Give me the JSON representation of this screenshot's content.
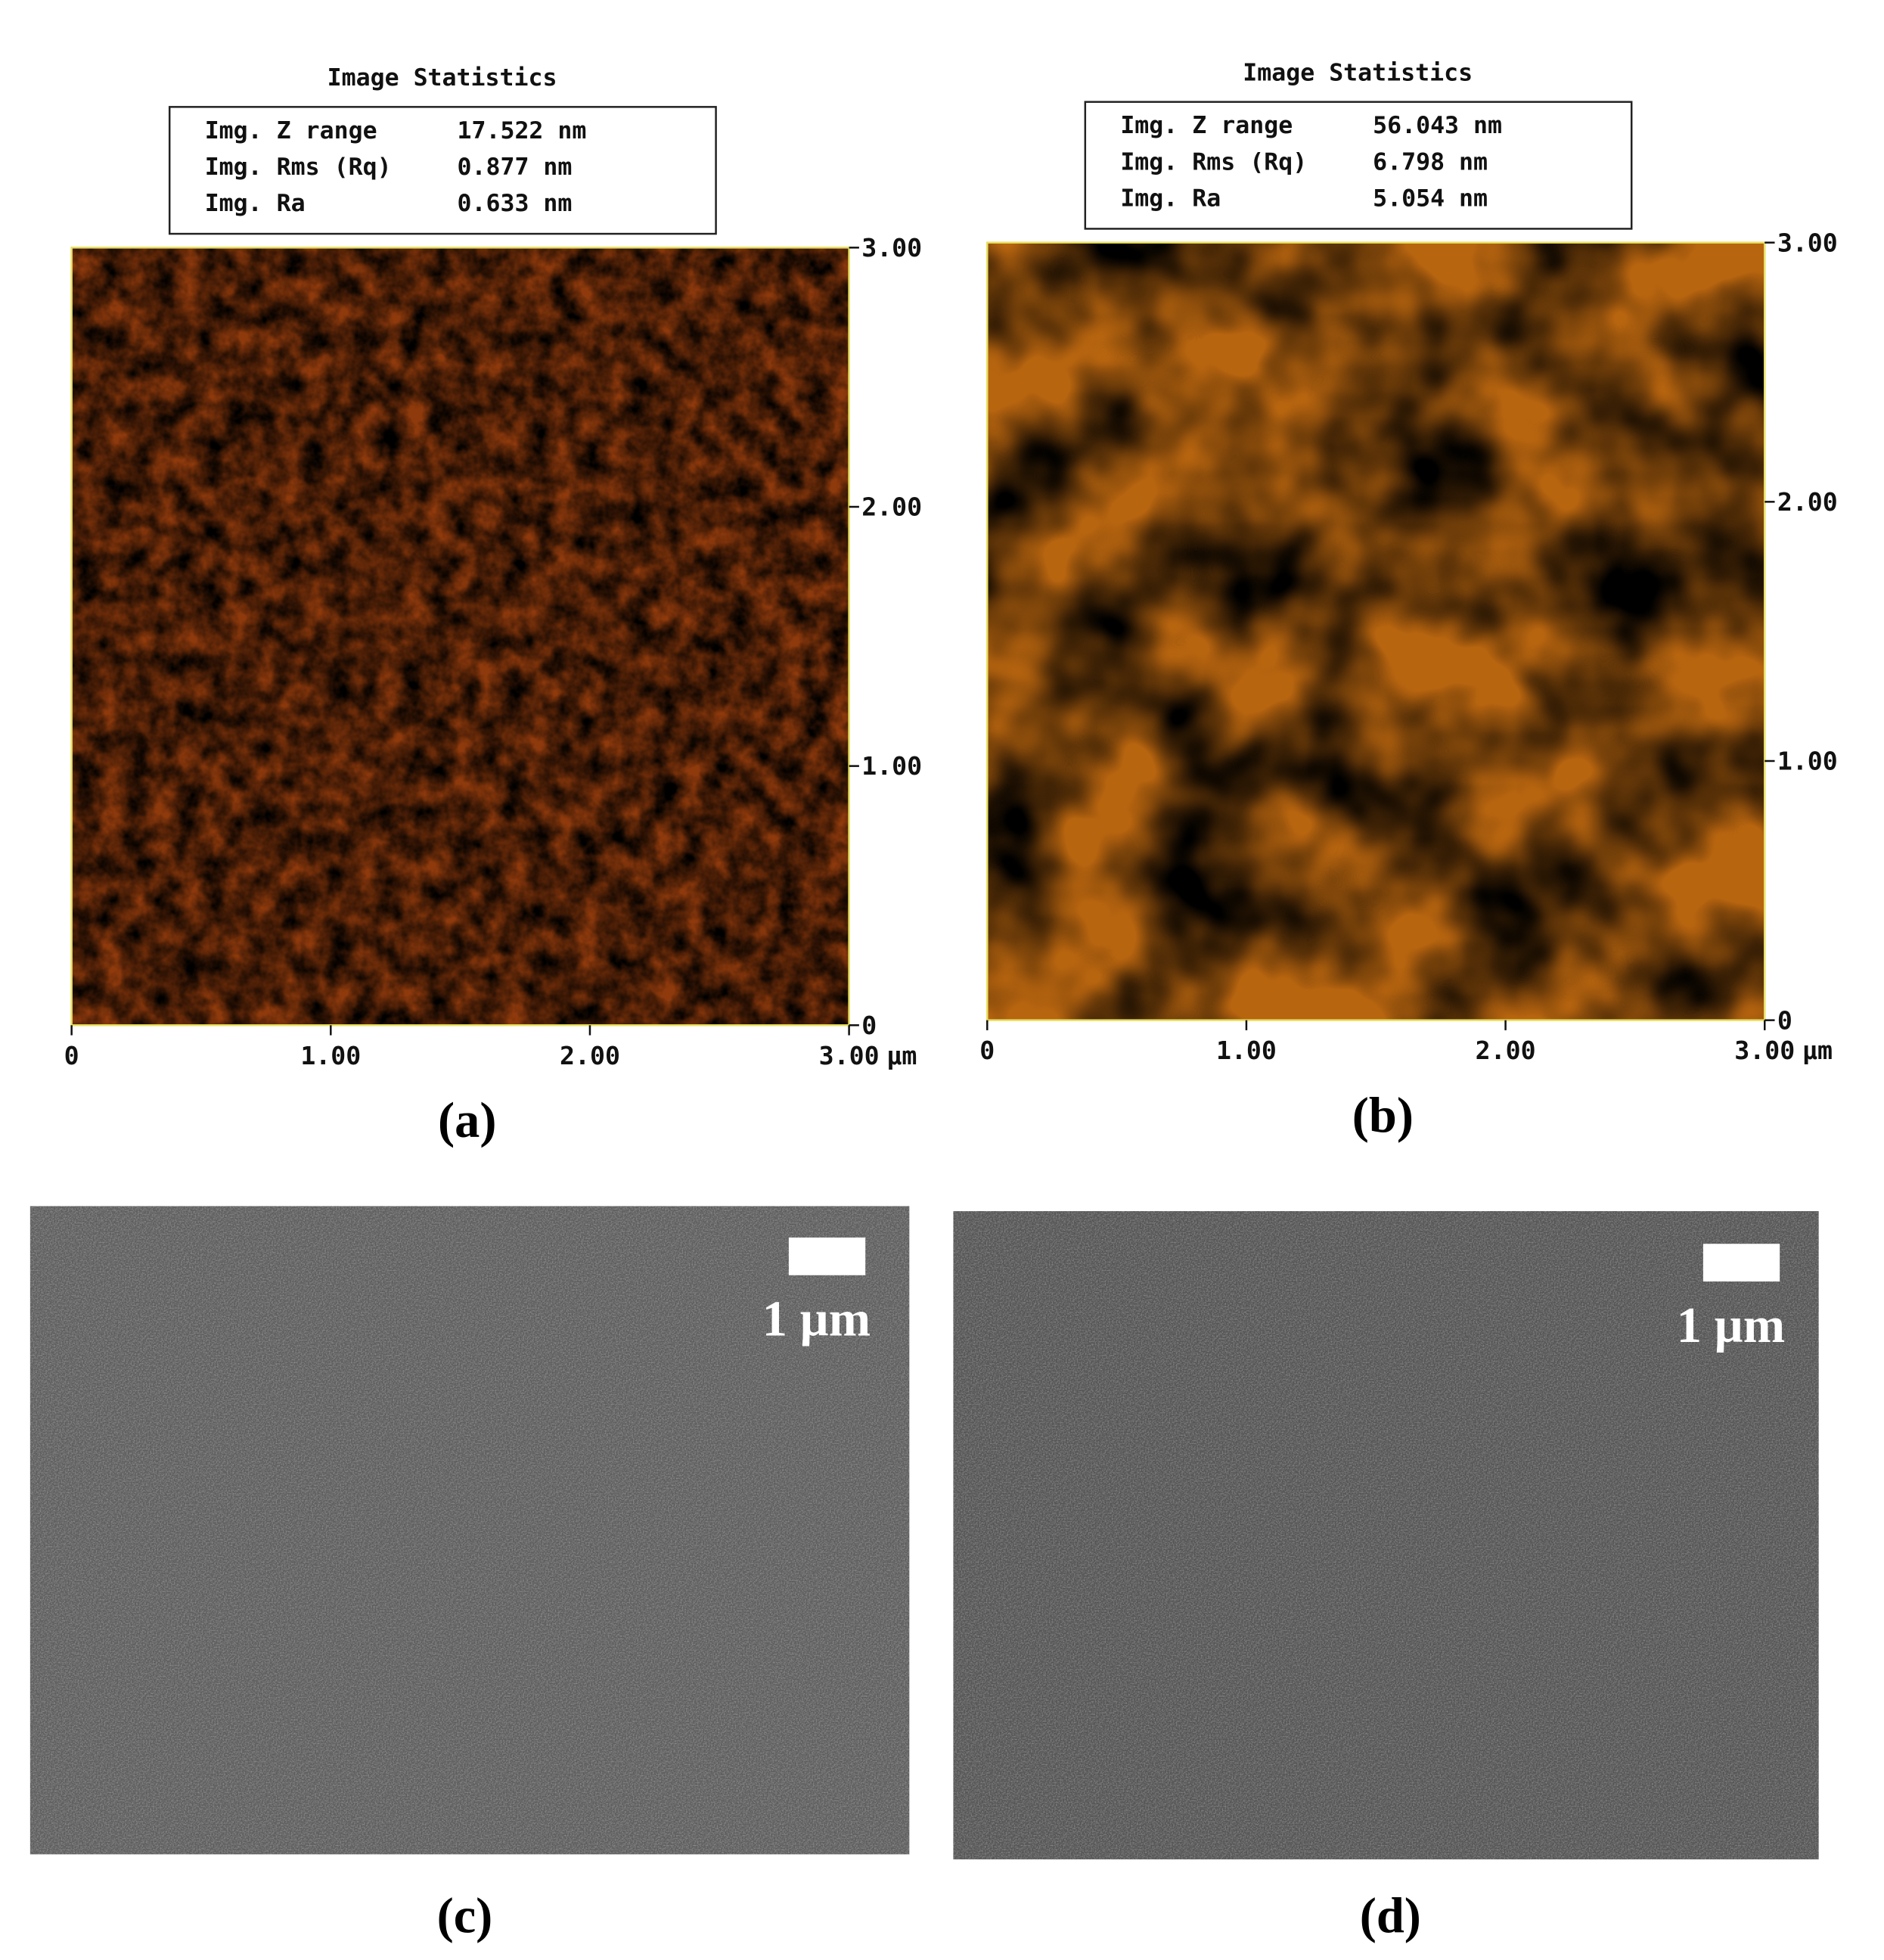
{
  "panels": [
    {
      "label": "(a)",
      "stats_title": "Image Statistics",
      "stats": [
        {
          "name": "Img. Z range",
          "value": "17.522 nm"
        },
        {
          "name": "Img. Rms (Rq)",
          "value": "0.877 nm"
        },
        {
          "name": "Img. Ra",
          "value": "0.633 nm"
        }
      ],
      "y_ticks": [
        "3.00",
        "2.00",
        "1.00",
        "0"
      ],
      "x_ticks": [
        "0",
        "1.00",
        "2.00",
        "3.00"
      ],
      "x_unit": "µm"
    },
    {
      "label": "(b)",
      "stats_title": "Image Statistics",
      "stats": [
        {
          "name": "Img. Z range",
          "value": "56.043 nm"
        },
        {
          "name": "Img. Rms (Rq)",
          "value": "6.798 nm"
        },
        {
          "name": "Img. Ra",
          "value": "5.054 nm"
        }
      ],
      "y_ticks": [
        "3.00",
        "2.00",
        "1.00",
        "0"
      ],
      "x_ticks": [
        "0",
        "1.00",
        "2.00",
        "3.00"
      ],
      "x_unit": "µm"
    },
    {
      "label": "(c)",
      "scale_bar": "1 µm"
    },
    {
      "label": "(d)",
      "scale_bar": "1 µm"
    }
  ]
}
